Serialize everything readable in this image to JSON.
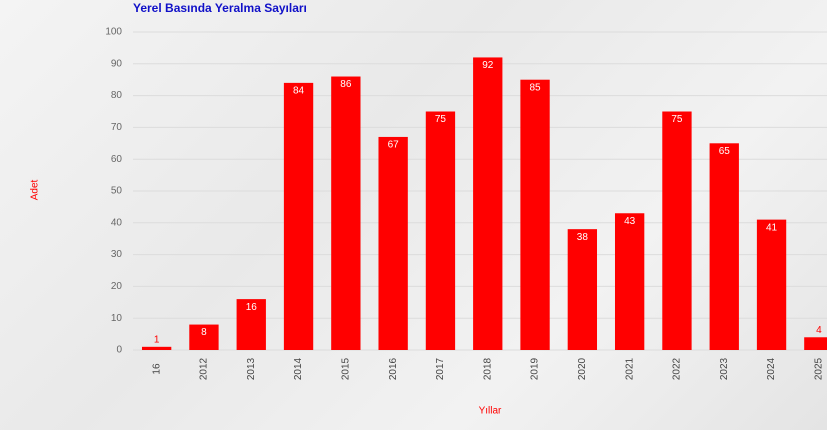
{
  "chart_data": {
    "type": "bar",
    "title": "Yerel Basında Yeralma Sayıları",
    "x_label": "Yıllar",
    "y_label": "Adet",
    "categories": [
      "16",
      "2012",
      "2013",
      "2014",
      "2015",
      "2016",
      "2017",
      "2018",
      "2019",
      "2020",
      "2021",
      "2022",
      "2023",
      "2024",
      "2025"
    ],
    "values": [
      1,
      8,
      16,
      84,
      86,
      67,
      75,
      92,
      85,
      38,
      43,
      75,
      65,
      41,
      4
    ],
    "color": "#ff0000",
    "ylim": [
      0,
      100
    ],
    "yticks": [
      0,
      10,
      20,
      30,
      40,
      50,
      60,
      70,
      80,
      90,
      100
    ],
    "grid": true
  }
}
